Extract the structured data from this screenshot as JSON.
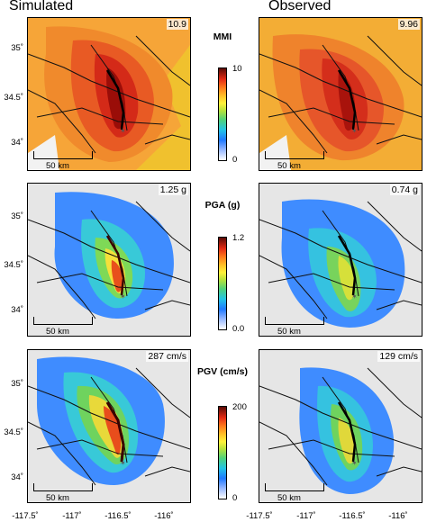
{
  "columns": {
    "left": "Simulated",
    "right": "Observed"
  },
  "rows": [
    {
      "colorbar_title": "MMI",
      "colorbar_max": "10",
      "colorbar_min": "0",
      "simulated_peak": "10.9",
      "observed_peak": "9.96"
    },
    {
      "colorbar_title": "PGA (g)",
      "colorbar_max": "1.2",
      "colorbar_min": "0.0",
      "simulated_peak": "1.25 g",
      "observed_peak": "0.74 g"
    },
    {
      "colorbar_title": "PGV (cm/s)",
      "colorbar_max": "200",
      "colorbar_min": "0",
      "simulated_peak": "287 cm/s",
      "observed_peak": "129 cm/s"
    }
  ],
  "scale_label": "50 km",
  "y_ticks": [
    "35˚",
    "34.5˚",
    "34˚"
  ],
  "x_ticks": [
    "-117.5˚",
    "-117˚",
    "-116.5˚",
    "-116˚"
  ],
  "colormap": [
    "#ffffff",
    "#8fb3ff",
    "#1f78ff",
    "#23c4e6",
    "#4fd27a",
    "#b7e23a",
    "#fff23a",
    "#ffc027",
    "#ff7a1a",
    "#e52b14",
    "#b0120c",
    "#5a0a05"
  ]
}
